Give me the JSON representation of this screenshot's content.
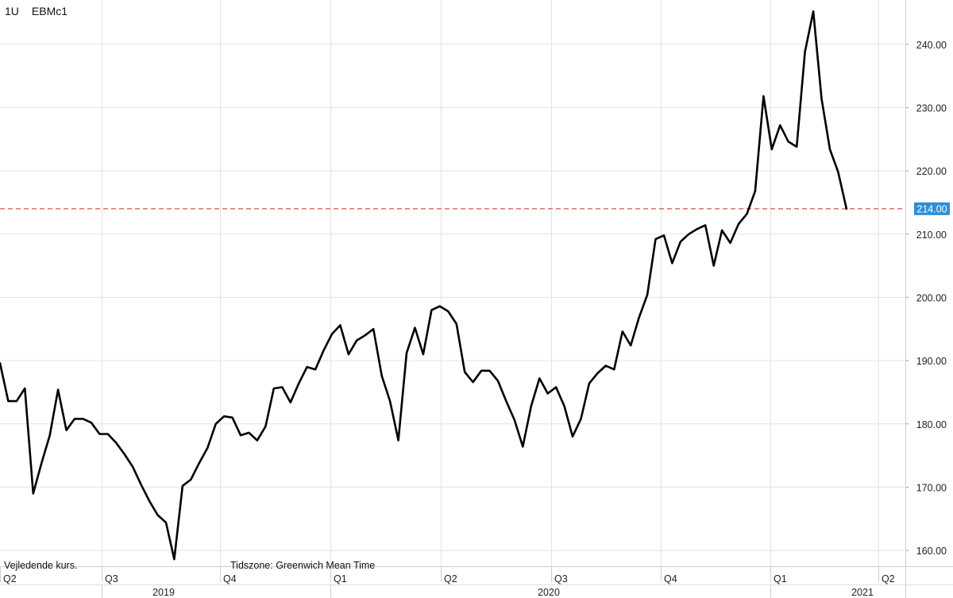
{
  "header": {
    "interval": "1U",
    "symbol": "EBMc1"
  },
  "notes": {
    "indicative": "Vejledende kurs.",
    "timezone": "Tidszone: Greenwich Mean Time"
  },
  "chart_data": {
    "type": "line",
    "title": "",
    "xlabel": "",
    "ylabel": "",
    "ylim": [
      157.5,
      247
    ],
    "yticks": [
      160,
      170,
      180,
      190,
      200,
      210,
      220,
      230,
      240
    ],
    "ytick_labels": [
      "160.00",
      "170.00",
      "180.00",
      "190.00",
      "200.00",
      "210.00",
      "220.00",
      "230.00",
      "240.00"
    ],
    "grid": true,
    "quarter_labels": [
      "Q2",
      "Q3",
      "Q4",
      "Q1",
      "Q2",
      "Q3",
      "Q4",
      "Q1",
      "Q2"
    ],
    "year_labels": [
      "2019",
      "2020",
      "2021"
    ],
    "last_value": 214.0,
    "last_value_label": "214.00",
    "colors": {
      "line": "#000000",
      "reference_line": "#d9534f",
      "last_value_box": "#2e8fd6",
      "grid": "#e3e3e3"
    },
    "series": [
      {
        "values": [
          189.6,
          183.6,
          183.6,
          185.6,
          169.0,
          173.8,
          178.2,
          185.4,
          179.0,
          180.8,
          180.8,
          180.2,
          178.4,
          178.4,
          177.0,
          175.2,
          173.2,
          170.4,
          167.8,
          165.6,
          164.4,
          158.6,
          170.2,
          171.2,
          173.8,
          176.2,
          180.0,
          181.2,
          181.0,
          178.2,
          178.6,
          177.4,
          179.6,
          185.6,
          185.8,
          183.4,
          186.4,
          189.0,
          188.6,
          191.6,
          194.2,
          195.6,
          191.0,
          193.2,
          194.0,
          195.0,
          187.6,
          183.6,
          177.4,
          191.2,
          195.2,
          191.0,
          198.0,
          198.6,
          197.8,
          195.8,
          188.2,
          186.6,
          188.4,
          188.4,
          186.8,
          183.6,
          180.6,
          176.4,
          182.8,
          187.2,
          184.8,
          185.8,
          182.8,
          178.0,
          180.8,
          186.4,
          188.0,
          189.2,
          188.6,
          194.6,
          192.4,
          196.8,
          200.4,
          209.2,
          209.8,
          205.4,
          208.8,
          210.0,
          210.8,
          211.4,
          205.0,
          210.6,
          208.6,
          211.6,
          213.2,
          216.8,
          231.8,
          223.4,
          227.2,
          224.6,
          223.8,
          238.8,
          245.2,
          231.4,
          223.4,
          219.8,
          214.0
        ]
      }
    ]
  }
}
